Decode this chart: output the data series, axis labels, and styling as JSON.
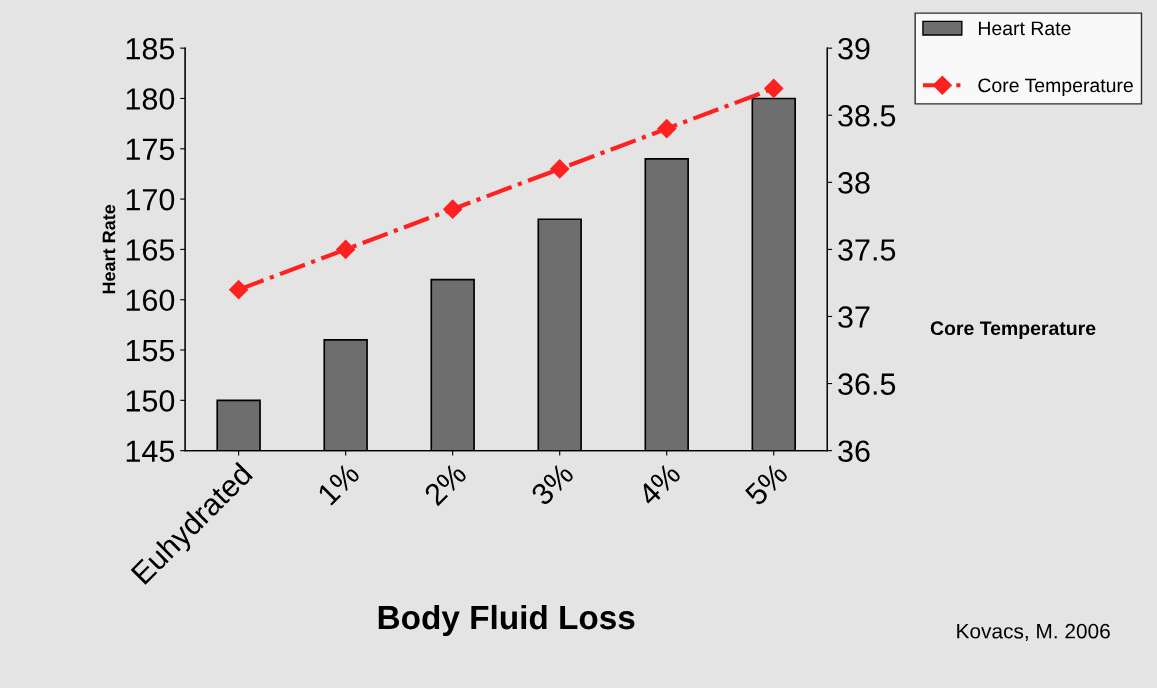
{
  "chart_data": {
    "type": "bar",
    "xlabel": "Body Fluid Loss",
    "ylabel": "Heart Rate",
    "y2label": "Core Temperature",
    "categories": [
      "Euhydrated",
      "1%",
      "2%",
      "3%",
      "4%",
      "5%"
    ],
    "series": [
      {
        "name": "Heart Rate",
        "color": "#6e6e6e",
        "values": [
          150,
          156,
          162,
          168,
          174,
          180
        ]
      },
      {
        "name": "Core Temperature",
        "type": "line",
        "axis": "y2",
        "color": "#ff2020",
        "marker": "diamond",
        "line_style": "dashed",
        "values": [
          37.2,
          37.5,
          37.8,
          38.1,
          38.4,
          38.7
        ]
      }
    ],
    "ylim": [
      145,
      185
    ],
    "yticks": [
      145,
      150,
      155,
      160,
      165,
      170,
      175,
      180,
      185
    ],
    "y2lim": [
      36,
      39
    ],
    "y2ticks": [
      36,
      36.5,
      37,
      37.5,
      38,
      38.5,
      39
    ],
    "grid": false,
    "legend": "top right",
    "annotations": [
      "Kovacs, M. 2006"
    ]
  }
}
